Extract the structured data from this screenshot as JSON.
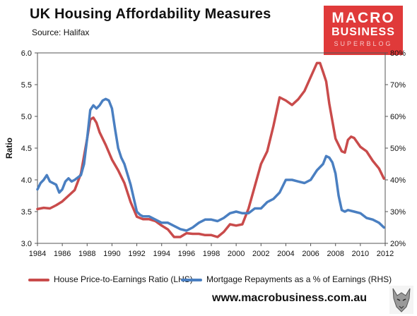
{
  "header": {
    "title": "UK Housing  Affordability Measures",
    "source": "Source:  Halifax"
  },
  "logo": {
    "line1": "MACRO",
    "line2": "BUSINESS",
    "line3": "SUPERBLOG",
    "color": "#e03a3a"
  },
  "footer": {
    "website": "www.macrobusiness.com.au",
    "icon": "wolf-icon"
  },
  "chart_data": {
    "type": "line",
    "xlabel": "",
    "ylabel": "Ratio",
    "xlim": [
      1984,
      2012
    ],
    "ylim_left": [
      3.0,
      6.0
    ],
    "ylim_right": [
      20,
      80
    ],
    "x_ticks": [
      "1984",
      "1986",
      "1988",
      "1990",
      "1992",
      "1994",
      "1996",
      "1998",
      "2000",
      "2002",
      "2004",
      "2006",
      "2008",
      "2010",
      "2012"
    ],
    "y_ticks_left": [
      "3.0",
      "3.5",
      "4.0",
      "4.5",
      "5.0",
      "5.5",
      "6.0"
    ],
    "y_ticks_right": [
      "20%",
      "30%",
      "40%",
      "50%",
      "60%",
      "70%",
      "80%"
    ],
    "grid": false,
    "legend_position": "bottom",
    "series": [
      {
        "name": "House Price-to-Earnings Ratio (LHS)",
        "axis": "left",
        "color": "#c94b4b",
        "points": [
          [
            1984.0,
            3.54
          ],
          [
            1984.5,
            3.56
          ],
          [
            1985.0,
            3.55
          ],
          [
            1985.5,
            3.6
          ],
          [
            1986.0,
            3.66
          ],
          [
            1986.5,
            3.75
          ],
          [
            1987.0,
            3.84
          ],
          [
            1987.5,
            4.1
          ],
          [
            1988.0,
            4.65
          ],
          [
            1988.25,
            4.95
          ],
          [
            1988.5,
            4.98
          ],
          [
            1988.75,
            4.9
          ],
          [
            1989.0,
            4.75
          ],
          [
            1989.5,
            4.55
          ],
          [
            1990.0,
            4.32
          ],
          [
            1990.5,
            4.15
          ],
          [
            1991.0,
            3.95
          ],
          [
            1991.5,
            3.65
          ],
          [
            1992.0,
            3.42
          ],
          [
            1992.5,
            3.38
          ],
          [
            1993.0,
            3.38
          ],
          [
            1993.5,
            3.35
          ],
          [
            1994.0,
            3.28
          ],
          [
            1994.5,
            3.22
          ],
          [
            1995.0,
            3.1
          ],
          [
            1995.5,
            3.1
          ],
          [
            1996.0,
            3.16
          ],
          [
            1996.5,
            3.15
          ],
          [
            1997.0,
            3.15
          ],
          [
            1997.5,
            3.13
          ],
          [
            1998.0,
            3.13
          ],
          [
            1998.5,
            3.1
          ],
          [
            1999.0,
            3.18
          ],
          [
            1999.5,
            3.3
          ],
          [
            2000.0,
            3.28
          ],
          [
            2000.5,
            3.3
          ],
          [
            2001.0,
            3.55
          ],
          [
            2001.5,
            3.9
          ],
          [
            2002.0,
            4.25
          ],
          [
            2002.5,
            4.45
          ],
          [
            2003.0,
            4.85
          ],
          [
            2003.5,
            5.3
          ],
          [
            2004.0,
            5.25
          ],
          [
            2004.5,
            5.18
          ],
          [
            2005.0,
            5.27
          ],
          [
            2005.5,
            5.4
          ],
          [
            2006.0,
            5.62
          ],
          [
            2006.5,
            5.84
          ],
          [
            2006.75,
            5.84
          ],
          [
            2007.0,
            5.7
          ],
          [
            2007.25,
            5.55
          ],
          [
            2007.5,
            5.2
          ],
          [
            2008.0,
            4.65
          ],
          [
            2008.5,
            4.45
          ],
          [
            2008.75,
            4.43
          ],
          [
            2009.0,
            4.63
          ],
          [
            2009.25,
            4.68
          ],
          [
            2009.5,
            4.66
          ],
          [
            2010.0,
            4.52
          ],
          [
            2010.5,
            4.45
          ],
          [
            2011.0,
            4.3
          ],
          [
            2011.5,
            4.18
          ],
          [
            2011.9,
            4.02
          ]
        ]
      },
      {
        "name": "Mortgage Repayments as a % of Earnings (RHS)",
        "axis": "right",
        "color": "#4a7fc1",
        "points": [
          [
            1984.0,
            37.0
          ],
          [
            1984.25,
            39.0
          ],
          [
            1984.5,
            40.0
          ],
          [
            1984.75,
            41.5
          ],
          [
            1985.0,
            39.5
          ],
          [
            1985.5,
            38.5
          ],
          [
            1985.75,
            36.0
          ],
          [
            1986.0,
            37.0
          ],
          [
            1986.25,
            39.5
          ],
          [
            1986.5,
            40.5
          ],
          [
            1986.75,
            39.5
          ],
          [
            1987.0,
            40.0
          ],
          [
            1987.5,
            41.5
          ],
          [
            1987.75,
            45.0
          ],
          [
            1988.0,
            53.0
          ],
          [
            1988.25,
            62.0
          ],
          [
            1988.5,
            63.5
          ],
          [
            1988.75,
            62.5
          ],
          [
            1989.0,
            63.5
          ],
          [
            1989.25,
            65.0
          ],
          [
            1989.5,
            65.5
          ],
          [
            1989.75,
            65.0
          ],
          [
            1990.0,
            62.5
          ],
          [
            1990.25,
            56.0
          ],
          [
            1990.5,
            50.0
          ],
          [
            1990.75,
            47.0
          ],
          [
            1991.0,
            45.0
          ],
          [
            1991.5,
            38.5
          ],
          [
            1992.0,
            30.0
          ],
          [
            1992.25,
            29.0
          ],
          [
            1992.5,
            28.5
          ],
          [
            1993.0,
            28.5
          ],
          [
            1993.5,
            27.5
          ],
          [
            1994.0,
            26.5
          ],
          [
            1994.5,
            26.5
          ],
          [
            1995.0,
            25.5
          ],
          [
            1995.5,
            24.5
          ],
          [
            1996.0,
            24.0
          ],
          [
            1996.5,
            25.0
          ],
          [
            1997.0,
            26.5
          ],
          [
            1997.5,
            27.5
          ],
          [
            1998.0,
            27.5
          ],
          [
            1998.5,
            27.0
          ],
          [
            1999.0,
            28.0
          ],
          [
            1999.5,
            29.5
          ],
          [
            2000.0,
            30.0
          ],
          [
            2000.5,
            29.5
          ],
          [
            2001.0,
            29.5
          ],
          [
            2001.5,
            31.0
          ],
          [
            2002.0,
            31.0
          ],
          [
            2002.5,
            33.0
          ],
          [
            2003.0,
            34.0
          ],
          [
            2003.5,
            36.0
          ],
          [
            2004.0,
            40.0
          ],
          [
            2004.5,
            40.0
          ],
          [
            2005.0,
            39.5
          ],
          [
            2005.5,
            39.0
          ],
          [
            2006.0,
            40.0
          ],
          [
            2006.5,
            43.0
          ],
          [
            2007.0,
            45.0
          ],
          [
            2007.25,
            47.5
          ],
          [
            2007.5,
            47.0
          ],
          [
            2007.75,
            45.5
          ],
          [
            2008.0,
            42.0
          ],
          [
            2008.25,
            35.0
          ],
          [
            2008.5,
            30.5
          ],
          [
            2008.75,
            30.0
          ],
          [
            2009.0,
            30.5
          ],
          [
            2009.5,
            30.0
          ],
          [
            2010.0,
            29.5
          ],
          [
            2010.5,
            28.0
          ],
          [
            2011.0,
            27.5
          ],
          [
            2011.5,
            26.5
          ],
          [
            2011.9,
            25.0
          ]
        ]
      }
    ]
  }
}
